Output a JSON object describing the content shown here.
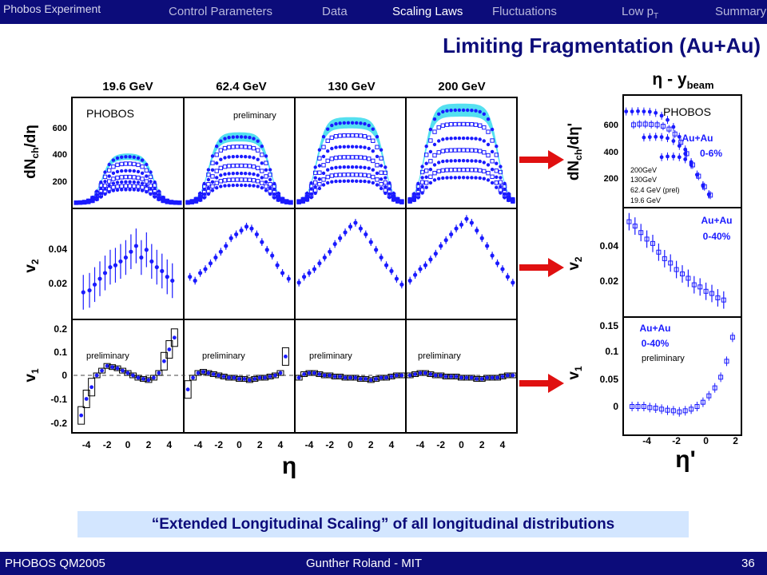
{
  "header": {
    "brand": "Phobos Experiment",
    "nav": [
      "Control Parameters",
      "Data",
      "Scaling Laws",
      "Fluctuations",
      "Low p",
      "Summary"
    ],
    "nav_sub": "T",
    "active": "Scaling Laws"
  },
  "slide_title": "Limiting Fragmentation (Au+Au)",
  "left_figure": {
    "energies": [
      "19.6 GeV",
      "62.4 GeV",
      "130 GeV",
      "200 GeV"
    ],
    "phobos_label": "PHOBOS",
    "preliminary": "preliminary",
    "ylabel_top": "dN",
    "ylabel_top_sub": "ch",
    "ylabel_top_tail": "/d",
    "ylabel_mid": "v",
    "ylabel_mid_sub": "2",
    "ylabel_bot": "v",
    "ylabel_bot_sub": "1",
    "xlabel": "η",
    "yticks_top": [
      "600",
      "400",
      "200"
    ],
    "yticks_mid": [
      "0.04",
      "0.02"
    ],
    "yticks_bot": [
      "0.2",
      "0.1",
      "0",
      "-0.1",
      "-0.2"
    ],
    "xticks": [
      "-4",
      "-2",
      "0",
      "2",
      "4"
    ]
  },
  "right_figure": {
    "heading": "η - y",
    "heading_sub": "beam",
    "phobos_label": "PHOBOS",
    "top_label": [
      "Au+Au",
      "0-6%"
    ],
    "top_legend": [
      "200GeV",
      "130GeV",
      "62.4 GeV (prel)",
      "19.6 GeV"
    ],
    "mid_label": [
      "Au+Au",
      "0-40%"
    ],
    "bot_label": [
      "Au+Au",
      "0-40%"
    ],
    "preliminary": "preliminary",
    "ylabel_top": "dN",
    "ylabel_top_sub": "ch",
    "ylabel_top_tail": "/dη'",
    "ylabel_mid": "v",
    "ylabel_mid_sub": "2",
    "ylabel_bot": "v",
    "ylabel_bot_sub": "1",
    "xlabel": "η'",
    "yticks_top": [
      "600",
      "400",
      "200"
    ],
    "yticks_mid": [
      "0.04",
      "0.02"
    ],
    "yticks_bot": [
      "0.15",
      "0.1",
      "0.05",
      "0"
    ],
    "xticks": [
      "-4",
      "-2",
      "0",
      "2"
    ]
  },
  "callout": "“Extended Longitudinal Scaling” of all longitudinal distributions",
  "footer": {
    "left": "PHOBOS QM2005",
    "center": "Gunther Roland - MIT",
    "page": "36"
  },
  "colors": {
    "navy": "#0c0c7a",
    "data_blue": "#1a1aff",
    "band_cyan": "#55e0f0",
    "arrow_red": "#e01010",
    "callout_bg": "#d3e6ff"
  },
  "chart_data": [
    {
      "type": "scatter",
      "title": "dNch/dη vs η (central Au+Au, four energies)",
      "xlabel": "η",
      "ylabel": "dNch/dη",
      "xlim": [
        -5.4,
        5.4
      ],
      "ylim": [
        0,
        750
      ],
      "series": [
        {
          "name": "19.6 GeV",
          "peak": [
            330,
            280,
            230,
            185,
            150,
            120,
            95
          ],
          "width": 2.5
        },
        {
          "name": "62.4 GeV",
          "peak": [
            470,
            400,
            330,
            265,
            210,
            165,
            125
          ],
          "width": 3.0
        },
        {
          "name": "130 GeV",
          "peak": [
            570,
            480,
            400,
            325,
            255,
            200,
            155
          ],
          "width": 3.3
        },
        {
          "name": "200 GeV",
          "peak": [
            660,
            560,
            460,
            375,
            300,
            235,
            180
          ],
          "width": 3.6
        }
      ]
    },
    {
      "type": "scatter",
      "title": "v2 vs η",
      "xlabel": "η",
      "ylabel": "v2",
      "ylim": [
        0,
        0.055
      ],
      "series": [
        {
          "name": "19.6 GeV",
          "x": [
            -4.3,
            -3.7,
            -3.2,
            -2.7,
            -2.2,
            -1.7,
            -1.2,
            -0.7,
            -0.2,
            0.3,
            0.8,
            1.3,
            1.8,
            2.3,
            2.8,
            3.3,
            3.8,
            4.3
          ],
          "y": [
            0.012,
            0.013,
            0.016,
            0.019,
            0.022,
            0.025,
            0.026,
            0.028,
            0.03,
            0.033,
            0.036,
            0.03,
            0.034,
            0.028,
            0.025,
            0.023,
            0.02,
            0.018
          ]
        },
        {
          "name": "62.4 GeV",
          "x": [
            -4.8,
            -4.3,
            -3.8,
            -3.3,
            -2.8,
            -2.3,
            -1.8,
            -1.3,
            -0.8,
            -0.3,
            0.2,
            0.7,
            1.2,
            1.7,
            2.2,
            2.7,
            3.2,
            3.7,
            4.2,
            4.8
          ],
          "y": [
            0.02,
            0.018,
            0.022,
            0.024,
            0.027,
            0.03,
            0.033,
            0.036,
            0.04,
            0.042,
            0.044,
            0.046,
            0.045,
            0.042,
            0.038,
            0.034,
            0.031,
            0.026,
            0.022,
            0.019
          ]
        },
        {
          "name": "130 GeV",
          "x": [
            -5.0,
            -4.5,
            -4.0,
            -3.5,
            -3.0,
            -2.5,
            -2.0,
            -1.5,
            -1.0,
            -0.5,
            0.0,
            0.5,
            1.0,
            1.5,
            2.0,
            2.5,
            3.0,
            3.5,
            4.0,
            4.5,
            5.0
          ],
          "y": [
            0.017,
            0.02,
            0.022,
            0.024,
            0.027,
            0.03,
            0.033,
            0.037,
            0.04,
            0.043,
            0.046,
            0.048,
            0.045,
            0.042,
            0.038,
            0.034,
            0.03,
            0.026,
            0.023,
            0.019,
            0.016
          ]
        },
        {
          "name": "200 GeV",
          "x": [
            -5.0,
            -4.5,
            -4.0,
            -3.5,
            -3.0,
            -2.5,
            -2.0,
            -1.5,
            -1.0,
            -0.5,
            0.0,
            0.5,
            1.0,
            1.5,
            2.0,
            2.5,
            3.0,
            3.5,
            4.0,
            4.5,
            5.0
          ],
          "y": [
            0.018,
            0.021,
            0.024,
            0.026,
            0.029,
            0.032,
            0.036,
            0.039,
            0.042,
            0.045,
            0.047,
            0.05,
            0.048,
            0.044,
            0.04,
            0.036,
            0.031,
            0.027,
            0.024,
            0.02,
            0.017
          ]
        }
      ]
    },
    {
      "type": "scatter",
      "title": "v1 vs η",
      "xlabel": "η",
      "ylabel": "v1",
      "ylim": [
        -0.23,
        0.22
      ],
      "series": [
        {
          "name": "19.6 GeV",
          "x": [
            -4.5,
            -4.0,
            -3.5,
            -3.0,
            -2.5,
            -2.0,
            -1.5,
            -1.0,
            -0.5,
            0.0,
            0.5,
            1.0,
            1.5,
            2.0,
            2.5,
            3.0,
            3.5,
            4.0,
            4.5
          ],
          "y": [
            -0.17,
            -0.1,
            -0.05,
            0.0,
            0.02,
            0.04,
            0.035,
            0.03,
            0.02,
            0.01,
            0.0,
            -0.01,
            -0.015,
            -0.02,
            -0.01,
            0.01,
            0.06,
            0.11,
            0.16
          ]
        },
        {
          "name": "62.4 GeV",
          "x": [
            -5.0,
            -4.5,
            -4.0,
            -3.5,
            -3.0,
            -2.5,
            -2.0,
            -1.5,
            -1.0,
            -0.5,
            0.0,
            0.5,
            1.0,
            1.5,
            2.0,
            2.5,
            3.0,
            3.5,
            4.0,
            4.5
          ],
          "y": [
            -0.06,
            -0.01,
            0.01,
            0.015,
            0.01,
            0.005,
            0.0,
            -0.005,
            -0.01,
            -0.01,
            -0.015,
            -0.015,
            -0.02,
            -0.015,
            -0.01,
            -0.01,
            -0.005,
            0.0,
            0.01,
            0.08
          ]
        },
        {
          "name": "130 GeV",
          "x": [
            -5.0,
            -4.5,
            -4.0,
            -3.5,
            -3.0,
            -2.5,
            -2.0,
            -1.5,
            -1.0,
            -0.5,
            0.0,
            0.5,
            1.0,
            1.5,
            2.0,
            2.5,
            3.0,
            3.5,
            4.0,
            4.5,
            5.0
          ],
          "y": [
            -0.01,
            0.005,
            0.01,
            0.01,
            0.005,
            0.0,
            0.0,
            -0.005,
            -0.005,
            -0.01,
            -0.01,
            -0.01,
            -0.015,
            -0.015,
            -0.02,
            -0.015,
            -0.01,
            -0.01,
            -0.005,
            0.0,
            0.0
          ]
        },
        {
          "name": "200 GeV",
          "x": [
            -5.0,
            -4.5,
            -4.0,
            -3.5,
            -3.0,
            -2.5,
            -2.0,
            -1.5,
            -1.0,
            -0.5,
            0.0,
            0.5,
            1.0,
            1.5,
            2.0,
            2.5,
            3.0,
            3.5,
            4.0,
            4.5,
            5.0
          ],
          "y": [
            0.0,
            0.005,
            0.01,
            0.01,
            0.005,
            0.0,
            0.0,
            -0.005,
            -0.005,
            -0.005,
            -0.01,
            -0.01,
            -0.01,
            -0.015,
            -0.015,
            -0.01,
            -0.01,
            -0.01,
            -0.005,
            0.0,
            0.0
          ]
        }
      ]
    },
    {
      "type": "scatter",
      "title": "dNch/dη' vs η' (Au+Au 0-6%)",
      "xlabel": "η'",
      "ylabel": "dNch/dη'",
      "ylim": [
        0,
        750
      ],
      "series": [
        {
          "name": "200GeV",
          "x": [
            -5.4,
            -5.0,
            -4.6,
            -4.2,
            -3.8,
            -3.4,
            -3.0,
            -2.6,
            -2.2,
            -1.8,
            -1.4,
            -1.0,
            -0.6,
            -0.2,
            0.2
          ],
          "y": [
            650,
            650,
            652,
            650,
            648,
            640,
            620,
            590,
            540,
            470,
            380,
            290,
            200,
            120,
            60
          ]
        },
        {
          "name": "130GeV",
          "x": [
            -4.9,
            -4.5,
            -4.1,
            -3.7,
            -3.3,
            -2.9,
            -2.5,
            -2.1,
            -1.7,
            -1.3,
            -0.9,
            -0.5,
            -0.1,
            0.3
          ],
          "y": [
            555,
            560,
            560,
            558,
            555,
            545,
            525,
            490,
            430,
            350,
            270,
            190,
            115,
            55
          ]
        },
        {
          "name": "62.4 GeV (prel)",
          "x": [
            -4.2,
            -3.8,
            -3.4,
            -3.0,
            -2.6,
            -2.2,
            -1.8,
            -1.4,
            -1.0,
            -0.6,
            -0.2,
            0.2
          ],
          "y": [
            465,
            468,
            470,
            468,
            460,
            440,
            405,
            350,
            280,
            200,
            125,
            60
          ]
        },
        {
          "name": "19.6 GeV",
          "x": [
            -3.0,
            -2.6,
            -2.2,
            -1.8,
            -1.4,
            -1.0,
            -0.6,
            -0.2,
            0.2
          ],
          "y": [
            325,
            330,
            330,
            325,
            310,
            270,
            200,
            125,
            60
          ]
        }
      ]
    },
    {
      "type": "scatter",
      "title": "v2 vs η' (Au+Au 0-40%)",
      "xlabel": "η'",
      "ylabel": "v2",
      "ylim": [
        0.008,
        0.055
      ],
      "x": [
        -5.2,
        -4.8,
        -4.4,
        -4.0,
        -3.6,
        -3.2,
        -2.8,
        -2.4,
        -2.0,
        -1.6,
        -1.2,
        -0.8,
        -0.4,
        0.0,
        0.4,
        0.8,
        1.2
      ],
      "y": [
        0.05,
        0.048,
        0.045,
        0.042,
        0.04,
        0.036,
        0.033,
        0.031,
        0.028,
        0.026,
        0.024,
        0.021,
        0.02,
        0.018,
        0.017,
        0.015,
        0.014
      ]
    },
    {
      "type": "scatter",
      "title": "v1 vs η' (Au+Au 0-40%)",
      "xlabel": "η'",
      "ylabel": "v1",
      "ylim": [
        -0.03,
        0.16
      ],
      "x": [
        -5.0,
        -4.6,
        -4.2,
        -3.8,
        -3.4,
        -3.0,
        -2.6,
        -2.2,
        -1.8,
        -1.4,
        -1.0,
        -0.6,
        -0.2,
        0.2,
        0.6,
        1.0,
        1.4,
        1.8
      ],
      "y": [
        0.0,
        0.0,
        0.0,
        -0.002,
        -0.003,
        -0.005,
        -0.007,
        -0.008,
        -0.01,
        -0.008,
        -0.005,
        0.0,
        0.008,
        0.02,
        0.035,
        0.055,
        0.085,
        0.13
      ]
    }
  ]
}
